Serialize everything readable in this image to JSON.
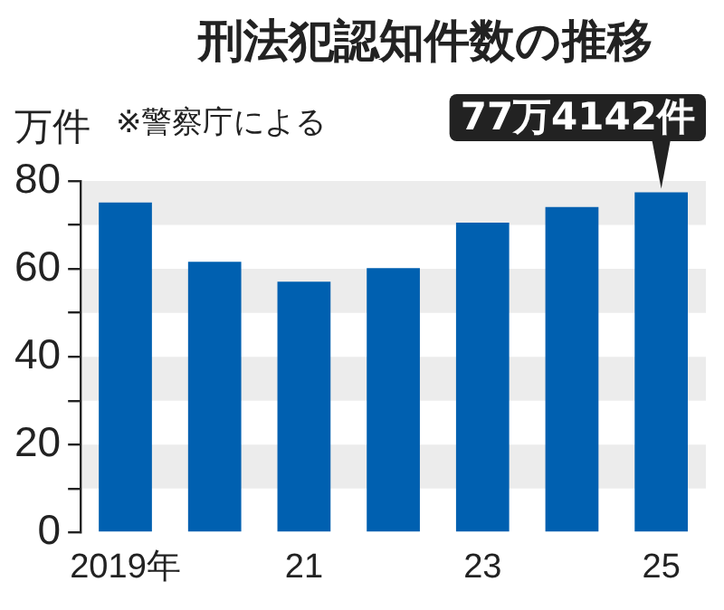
{
  "chart_data": {
    "type": "bar",
    "title": "刑法犯認知件数の推移",
    "ylabel": "万件",
    "categories": [
      "2019年",
      null,
      "21",
      null,
      "23",
      null,
      "25"
    ],
    "values": [
      75.1,
      61.6,
      57.1,
      60.2,
      70.5,
      74.1,
      77.4
    ],
    "color": "#0060b0",
    "ylim": [
      0,
      80
    ],
    "yticks": [
      0,
      {
        "value": 10,
        "label": null
      },
      20,
      {
        "value": 30,
        "label": null
      },
      40,
      {
        "value": 50,
        "label": null
      },
      60,
      {
        "value": 70,
        "label": null
      },
      80
    ],
    "bands": [
      {
        "axis": "y",
        "from": 70,
        "to": 80,
        "color": "#ececec"
      },
      {
        "axis": "y",
        "from": 50,
        "to": 60,
        "color": "#ececec"
      },
      {
        "axis": "y",
        "from": 30,
        "to": 40,
        "color": "#ececec"
      },
      {
        "axis": "y",
        "from": 10,
        "to": 20,
        "color": "#ececec"
      }
    ],
    "annotations": [
      "※警察庁による",
      {
        "text": "77万4142件",
        "x": "25",
        "y": 77.4
      }
    ],
    "grid": false,
    "legend": false
  }
}
